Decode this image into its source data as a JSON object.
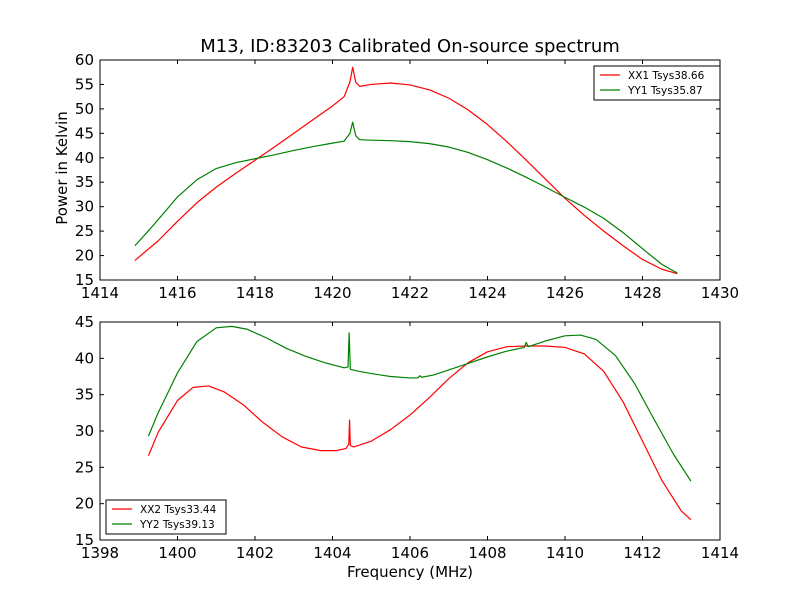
{
  "chart_data": {
    "title": "M13, ID:83203 Calibrated On-source spectrum",
    "xlabel": "Frequency (MHz)",
    "ylabel": "Power in Kelvin",
    "panels": [
      {
        "type": "line",
        "xlim": [
          1414,
          1430
        ],
        "ylim": [
          15,
          60
        ],
        "xticks": [
          1414,
          1416,
          1418,
          1420,
          1422,
          1424,
          1426,
          1428,
          1430
        ],
        "yticks": [
          15,
          20,
          25,
          30,
          35,
          40,
          45,
          50,
          55,
          60
        ],
        "legend_position": "top-right",
        "grid": false,
        "series": [
          {
            "name": "XX1 Tsys38.66",
            "color": "#ff0000",
            "points": [
              [
                1414.9,
                19.0
              ],
              [
                1415.5,
                23.0
              ],
              [
                1416.0,
                27.0
              ],
              [
                1416.5,
                30.8
              ],
              [
                1417.0,
                34.0
              ],
              [
                1417.5,
                36.8
              ],
              [
                1418.0,
                39.5
              ],
              [
                1418.5,
                42.2
              ],
              [
                1419.0,
                45.0
              ],
              [
                1419.5,
                47.8
              ],
              [
                1420.0,
                50.6
              ],
              [
                1420.3,
                52.5
              ],
              [
                1420.45,
                55.5
              ],
              [
                1420.52,
                58.5
              ],
              [
                1420.6,
                55.5
              ],
              [
                1420.7,
                54.6
              ],
              [
                1421.0,
                55.0
              ],
              [
                1421.5,
                55.3
              ],
              [
                1422.0,
                54.9
              ],
              [
                1422.5,
                53.9
              ],
              [
                1423.0,
                52.2
              ],
              [
                1423.5,
                49.8
              ],
              [
                1424.0,
                46.8
              ],
              [
                1424.5,
                43.3
              ],
              [
                1425.0,
                39.5
              ],
              [
                1425.5,
                35.6
              ],
              [
                1426.0,
                31.7
              ],
              [
                1426.5,
                28.2
              ],
              [
                1427.0,
                25.0
              ],
              [
                1427.5,
                22.0
              ],
              [
                1428.0,
                19.2
              ],
              [
                1428.5,
                17.2
              ],
              [
                1428.9,
                16.3
              ]
            ]
          },
          {
            "name": "YY1 Tsys35.87",
            "color": "#008000",
            "points": [
              [
                1414.9,
                22.0
              ],
              [
                1415.3,
                25.5
              ],
              [
                1415.7,
                29.2
              ],
              [
                1416.0,
                32.0
              ],
              [
                1416.5,
                35.5
              ],
              [
                1417.0,
                37.8
              ],
              [
                1417.5,
                39.0
              ],
              [
                1418.0,
                39.8
              ],
              [
                1418.5,
                40.6
              ],
              [
                1419.0,
                41.5
              ],
              [
                1419.5,
                42.3
              ],
              [
                1420.0,
                43.0
              ],
              [
                1420.3,
                43.4
              ],
              [
                1420.45,
                45.0
              ],
              [
                1420.52,
                47.3
              ],
              [
                1420.6,
                44.5
              ],
              [
                1420.7,
                43.7
              ],
              [
                1421.0,
                43.6
              ],
              [
                1421.5,
                43.5
              ],
              [
                1422.0,
                43.3
              ],
              [
                1422.5,
                42.9
              ],
              [
                1423.0,
                42.2
              ],
              [
                1423.5,
                41.1
              ],
              [
                1424.0,
                39.6
              ],
              [
                1424.5,
                37.9
              ],
              [
                1425.0,
                36.0
              ],
              [
                1425.5,
                34.0
              ],
              [
                1426.0,
                31.9
              ],
              [
                1426.5,
                29.9
              ],
              [
                1427.0,
                27.6
              ],
              [
                1427.5,
                24.7
              ],
              [
                1428.0,
                21.4
              ],
              [
                1428.5,
                18.2
              ],
              [
                1428.9,
                16.4
              ]
            ]
          }
        ]
      },
      {
        "type": "line",
        "xlim": [
          1398,
          1414
        ],
        "ylim": [
          15,
          45
        ],
        "xticks": [
          1398,
          1400,
          1402,
          1404,
          1406,
          1408,
          1410,
          1412,
          1414
        ],
        "yticks": [
          15,
          20,
          25,
          30,
          35,
          40,
          45
        ],
        "legend_position": "bottom-left",
        "grid": false,
        "series": [
          {
            "name": "XX2 Tsys33.44",
            "color": "#ff0000",
            "points": [
              [
                1399.25,
                26.6
              ],
              [
                1399.5,
                29.8
              ],
              [
                1400.0,
                34.2
              ],
              [
                1400.4,
                36.0
              ],
              [
                1400.8,
                36.2
              ],
              [
                1401.2,
                35.4
              ],
              [
                1401.7,
                33.6
              ],
              [
                1402.2,
                31.2
              ],
              [
                1402.7,
                29.2
              ],
              [
                1403.2,
                27.8
              ],
              [
                1403.7,
                27.3
              ],
              [
                1404.1,
                27.3
              ],
              [
                1404.35,
                27.6
              ],
              [
                1404.42,
                28.2
              ],
              [
                1404.44,
                31.5
              ],
              [
                1404.46,
                28.0
              ],
              [
                1404.55,
                27.8
              ],
              [
                1405.0,
                28.6
              ],
              [
                1405.5,
                30.2
              ],
              [
                1406.0,
                32.2
              ],
              [
                1406.5,
                34.6
              ],
              [
                1407.0,
                37.2
              ],
              [
                1407.5,
                39.4
              ],
              [
                1408.0,
                40.9
              ],
              [
                1408.5,
                41.6
              ],
              [
                1409.0,
                41.7
              ],
              [
                1409.5,
                41.7
              ],
              [
                1410.0,
                41.5
              ],
              [
                1410.5,
                40.6
              ],
              [
                1411.0,
                38.2
              ],
              [
                1411.5,
                34.0
              ],
              [
                1412.0,
                28.6
              ],
              [
                1412.5,
                23.2
              ],
              [
                1413.0,
                19.0
              ],
              [
                1413.25,
                17.8
              ]
            ]
          },
          {
            "name": "YY2 Tsys39.13",
            "color": "#008000",
            "points": [
              [
                1399.25,
                29.3
              ],
              [
                1399.5,
                32.5
              ],
              [
                1400.0,
                38.0
              ],
              [
                1400.5,
                42.3
              ],
              [
                1401.0,
                44.2
              ],
              [
                1401.4,
                44.4
              ],
              [
                1401.8,
                44.0
              ],
              [
                1402.3,
                42.8
              ],
              [
                1402.8,
                41.4
              ],
              [
                1403.3,
                40.3
              ],
              [
                1403.8,
                39.4
              ],
              [
                1404.3,
                38.7
              ],
              [
                1404.4,
                38.8
              ],
              [
                1404.43,
                43.5
              ],
              [
                1404.46,
                38.5
              ],
              [
                1404.6,
                38.3
              ],
              [
                1405.0,
                37.9
              ],
              [
                1405.5,
                37.5
              ],
              [
                1406.0,
                37.3
              ],
              [
                1406.2,
                37.3
              ],
              [
                1406.25,
                37.6
              ],
              [
                1406.3,
                37.4
              ],
              [
                1406.6,
                37.7
              ],
              [
                1407.0,
                38.4
              ],
              [
                1407.5,
                39.3
              ],
              [
                1408.0,
                40.2
              ],
              [
                1408.5,
                41.0
              ],
              [
                1408.95,
                41.5
              ],
              [
                1409.0,
                42.2
              ],
              [
                1409.05,
                41.6
              ],
              [
                1409.5,
                42.4
              ],
              [
                1410.0,
                43.1
              ],
              [
                1410.4,
                43.2
              ],
              [
                1410.8,
                42.6
              ],
              [
                1411.3,
                40.4
              ],
              [
                1411.8,
                36.5
              ],
              [
                1412.3,
                31.6
              ],
              [
                1412.8,
                26.8
              ],
              [
                1413.25,
                23.1
              ]
            ]
          }
        ]
      }
    ]
  }
}
